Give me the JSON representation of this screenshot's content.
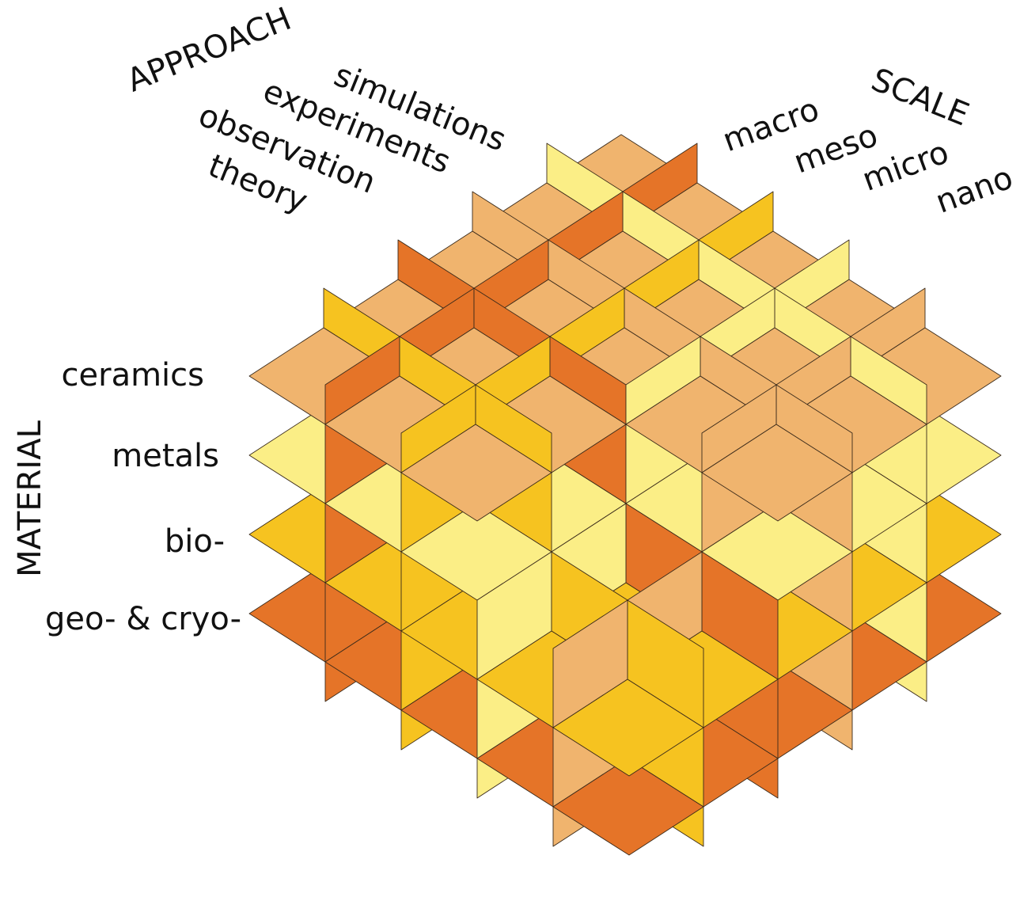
{
  "approach": {
    "title": "APPROACH",
    "items": [
      "simulations",
      "experiments",
      "observation",
      "theory"
    ]
  },
  "scale": {
    "title": "SCALE",
    "items": [
      "macro",
      "meso",
      "micro",
      "nano"
    ]
  },
  "material": {
    "title": "MATERIAL",
    "items": [
      "ceramics",
      "metals",
      "bio-",
      "geo- & cryo-"
    ]
  }
}
